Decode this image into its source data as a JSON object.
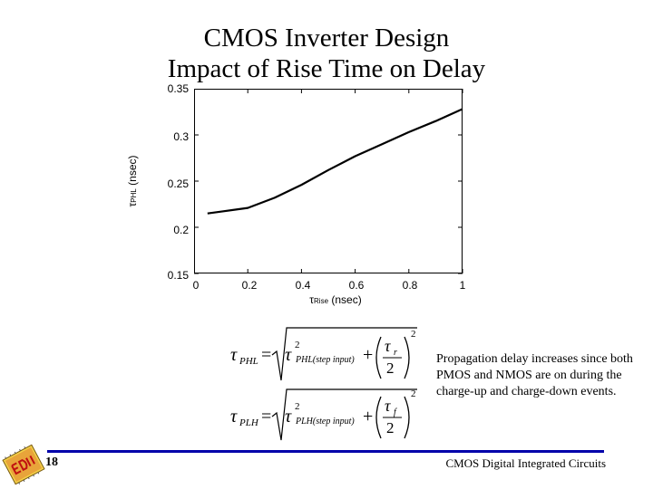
{
  "slide": {
    "title_line1": "CMOS Inverter Design",
    "title_line2": "Impact of Rise Time on Delay",
    "page_number": "18",
    "footer": "CMOS Digital Integrated Circuits",
    "note": "Propagation delay increases since both PMOS and NMOS are on during the charge-up and charge-down events."
  },
  "equations": {
    "tphl_lhs": "τ",
    "tphl_lhs_sub": "PHL",
    "tphl_inner": "τ",
    "tphl_inner_sub": "PHL(step input)",
    "tphl_frac_num": "τ",
    "tphl_frac_num_sub": "r",
    "tphl_frac_den": "2",
    "tplh_lhs": "τ",
    "tplh_lhs_sub": "PLH",
    "tplh_inner": "τ",
    "tplh_inner_sub": "PLH(step input)",
    "tplh_frac_num": "τ",
    "tplh_frac_num_sub": "f",
    "tplh_frac_den": "2",
    "equals": "=",
    "plus": "+",
    "square": "2"
  },
  "chart_data": {
    "type": "line",
    "title": "",
    "xlabel": "τ",
    "xlabel_sub": "Rise",
    "xlabel_unit": "(nsec)",
    "ylabel": "τ",
    "ylabel_sub": "PHL",
    "ylabel_unit": "(nsec)",
    "xlim": [
      0,
      1
    ],
    "ylim": [
      0.15,
      0.35
    ],
    "x_ticks": [
      "0",
      "0.2",
      "0.4",
      "0.6",
      "0.8",
      "1"
    ],
    "y_ticks": [
      "0.35",
      "0.3",
      "0.25",
      "0.2",
      "0.15"
    ],
    "x_tick_values": [
      0,
      0.2,
      0.4,
      0.6,
      0.8,
      1
    ],
    "y_tick_values": [
      0.35,
      0.3,
      0.25,
      0.2,
      0.15
    ],
    "grid": false,
    "series": [
      {
        "x": [
          0.05,
          0.1,
          0.2,
          0.3,
          0.4,
          0.5,
          0.6,
          0.7,
          0.8,
          0.9,
          1.0
        ],
        "values": [
          0.215,
          0.217,
          0.221,
          0.232,
          0.246,
          0.262,
          0.277,
          0.29,
          0.303,
          0.315,
          0.328
        ]
      }
    ],
    "colors": {
      "line": "#000000",
      "axes": "#000000"
    }
  }
}
